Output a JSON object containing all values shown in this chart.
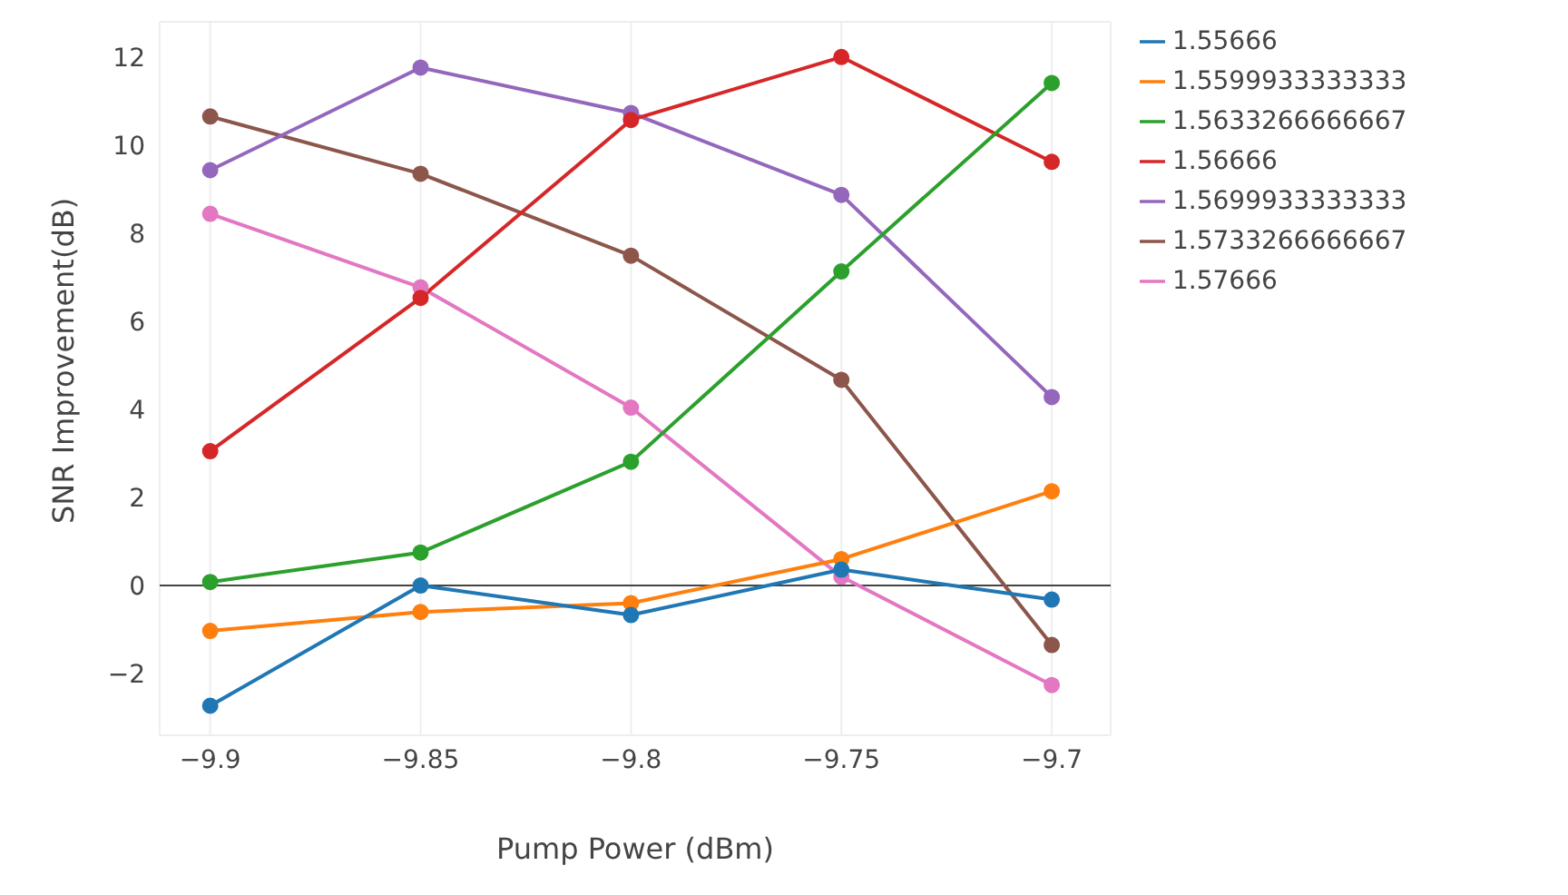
{
  "chart_data": {
    "type": "line",
    "xlabel": "Pump Power (dBm)",
    "ylabel": "SNR Improvement(dB)",
    "x": [
      -9.9,
      -9.85,
      -9.8,
      -9.75,
      -9.7
    ],
    "series": [
      {
        "name": "1.55666",
        "color": "#1f77b4",
        "values": [
          -2.73,
          0,
          -0.67,
          0.36,
          -0.32
        ]
      },
      {
        "name": "1.5599933333333",
        "color": "#ff7f0e",
        "values": [
          -1.03,
          -0.6,
          -0.4,
          0.6,
          2.14
        ]
      },
      {
        "name": "1.5633266666667",
        "color": "#2ca02c",
        "values": [
          0.08,
          0.75,
          2.81,
          7.13,
          11.41
        ]
      },
      {
        "name": "1.56666",
        "color": "#d62728",
        "values": [
          3.05,
          6.53,
          10.57,
          12.0,
          9.62
        ]
      },
      {
        "name": "1.5699933333333",
        "color": "#9467bd",
        "values": [
          9.43,
          11.76,
          10.73,
          8.87,
          4.28
        ]
      },
      {
        "name": "1.5733266666667",
        "color": "#8c564b",
        "values": [
          10.65,
          9.35,
          7.49,
          4.67,
          -1.35
        ]
      },
      {
        "name": "1.57666",
        "color": "#e377c2",
        "values": [
          8.44,
          6.77,
          4.04,
          0.2,
          -2.26
        ]
      }
    ],
    "xlim": [
      -9.912,
      -9.686
    ],
    "xticks": [
      {
        "value": -9.9,
        "label": "−9.9"
      },
      {
        "value": -9.85,
        "label": "−9.85"
      },
      {
        "value": -9.8,
        "label": "−9.8"
      },
      {
        "value": -9.75,
        "label": "−9.75"
      },
      {
        "value": -9.7,
        "label": "−9.7"
      }
    ],
    "ylim": [
      -3.4,
      12.8
    ],
    "yticks": [
      {
        "value": -2,
        "label": "−2"
      },
      0,
      2,
      4,
      6,
      8,
      10,
      12
    ],
    "ref_lines": [
      {
        "axis": "y",
        "value": 0,
        "color": "#444444"
      }
    ],
    "grid": true,
    "legend": "top right",
    "marker": "circle",
    "line_style": "solid"
  }
}
